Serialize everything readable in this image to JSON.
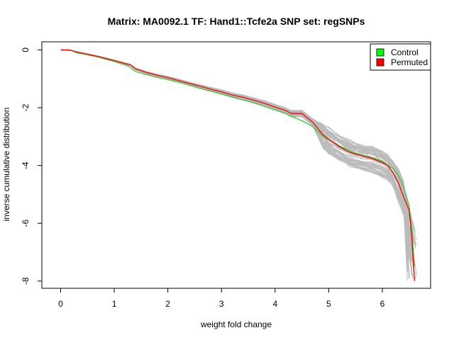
{
  "chart_data": {
    "type": "line",
    "title": "Matrix: MA0092.1 TF: Hand1::Tcfe2a SNP set: regSNPs",
    "xlabel": "weight fold change",
    "ylabel": "inverse cumulative distribution",
    "xlim": [
      -0.35,
      6.9
    ],
    "ylim": [
      -8.25,
      0.28
    ],
    "xticks": [
      0,
      1,
      2,
      3,
      4,
      5,
      6
    ],
    "yticks": [
      0,
      -2,
      -4,
      -6,
      -8
    ],
    "grid": false,
    "legend_position": "top-right",
    "legend": [
      {
        "label": "Control",
        "color": "#00ff00"
      },
      {
        "label": "Permuted",
        "color": "#ff0000"
      }
    ],
    "series": [
      {
        "name": "Control",
        "color": "#33cc33",
        "x": [
          0.0,
          0.2,
          0.3,
          0.5,
          0.7,
          1.0,
          1.25,
          1.4,
          1.6,
          1.8,
          2.0,
          2.2,
          2.4,
          2.6,
          2.8,
          3.0,
          3.2,
          3.4,
          3.6,
          3.8,
          4.0,
          4.2,
          4.3,
          4.5,
          4.7,
          4.9,
          5.0,
          5.1,
          5.3,
          5.5,
          5.7,
          5.9,
          6.0,
          6.1,
          6.2,
          6.3,
          6.4,
          6.5,
          6.55,
          6.6
        ],
        "values": [
          0.0,
          -0.02,
          -0.1,
          -0.17,
          -0.25,
          -0.4,
          -0.55,
          -0.75,
          -0.85,
          -0.95,
          -1.03,
          -1.12,
          -1.22,
          -1.33,
          -1.43,
          -1.53,
          -1.63,
          -1.73,
          -1.83,
          -1.95,
          -2.08,
          -2.2,
          -2.3,
          -2.45,
          -2.65,
          -3.0,
          -3.12,
          -3.22,
          -3.42,
          -3.58,
          -3.68,
          -3.78,
          -3.85,
          -4.0,
          -4.1,
          -4.35,
          -4.75,
          -5.4,
          -6.2,
          -7.5
        ]
      },
      {
        "name": "Permuted",
        "color": "#ff0000",
        "x": [
          0.0,
          0.15,
          0.2,
          0.3,
          0.5,
          0.7,
          1.0,
          1.3,
          1.4,
          1.6,
          1.8,
          2.0,
          2.2,
          2.4,
          2.6,
          2.8,
          3.0,
          3.2,
          3.4,
          3.6,
          3.8,
          4.0,
          4.2,
          4.3,
          4.5,
          4.7,
          4.9,
          5.0,
          5.2,
          5.4,
          5.6,
          5.8,
          6.0,
          6.1,
          6.2,
          6.3,
          6.4,
          6.5,
          6.55,
          6.6
        ],
        "values": [
          0.0,
          0.0,
          -0.02,
          -0.07,
          -0.15,
          -0.23,
          -0.37,
          -0.52,
          -0.66,
          -0.78,
          -0.88,
          -0.96,
          -1.06,
          -1.16,
          -1.26,
          -1.36,
          -1.45,
          -1.56,
          -1.64,
          -1.74,
          -1.85,
          -1.98,
          -2.1,
          -2.2,
          -2.2,
          -2.5,
          -2.95,
          -3.1,
          -3.35,
          -3.55,
          -3.66,
          -3.75,
          -3.9,
          -4.0,
          -4.25,
          -4.6,
          -5.1,
          -5.55,
          -6.5,
          -8.0
        ]
      }
    ],
    "background_band": {
      "name": "permutation-runs",
      "color": "#bbbbbb",
      "count": 60
    }
  }
}
